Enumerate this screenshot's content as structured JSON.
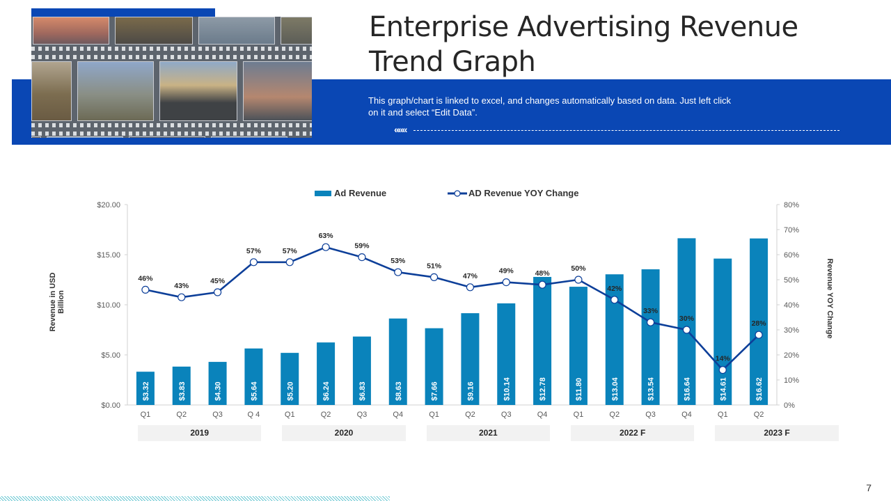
{
  "header": {
    "title_line1": "Enterprise Advertising Revenue",
    "title_line2": "Trend Graph",
    "subtitle_line1": "This graph/chart is linked to excel, and changes automatically based on data. Just left click",
    "subtitle_line2": "on it and select “Edit Data”.",
    "chevron_glyph": "«««",
    "brand_color": "#0a47b4"
  },
  "decor": {
    "photo_icon": "film-strip-photo-collage"
  },
  "page_number": "7",
  "chart_data": {
    "type": "bar+line",
    "title": "",
    "legend": [
      {
        "name": "Ad Revenue",
        "kind": "bar",
        "color": "#0a83bb"
      },
      {
        "name": "AD Revenue YOY Change",
        "kind": "line",
        "color": "#0d3f99"
      }
    ],
    "legend_placement": "top-center",
    "categories": [
      "Q1",
      "Q2",
      "Q3",
      "Q 4",
      "Q1",
      "Q2",
      "Q3",
      "Q4",
      "Q1",
      "Q2",
      "Q3",
      "Q4",
      "Q1",
      "Q2",
      "Q3",
      "Q4",
      "Q1",
      "Q2"
    ],
    "groups": [
      {
        "label": "2019",
        "span": 4
      },
      {
        "label": "2020",
        "span": 4
      },
      {
        "label": "2021",
        "span": 4
      },
      {
        "label": "2022 F",
        "span": 4
      },
      {
        "label": "2023 F",
        "span": 2
      }
    ],
    "series": [
      {
        "name": "Ad Revenue",
        "axis": "left",
        "values": [
          3.32,
          3.83,
          4.3,
          5.64,
          5.2,
          6.24,
          6.83,
          8.63,
          7.66,
          9.16,
          10.14,
          12.78,
          11.8,
          13.04,
          13.54,
          16.64,
          14.61,
          16.62
        ],
        "labels": [
          "$3.32",
          "$3.83",
          "$4.30",
          "$5.64",
          "$5.20",
          "$6.24",
          "$6.83",
          "$8.63",
          "$7.66",
          "$9.16",
          "$10.14",
          "$12.78",
          "$11.80",
          "$13.04",
          "$13.54",
          "$16.64",
          "$14.61",
          "$16.62"
        ]
      },
      {
        "name": "AD Revenue YOY Change",
        "axis": "right",
        "values": [
          46,
          43,
          45,
          57,
          57,
          63,
          59,
          53,
          51,
          47,
          49,
          48,
          50,
          42,
          33,
          30,
          14,
          28
        ],
        "labels": [
          "46%",
          "43%",
          "45%",
          "57%",
          "57%",
          "63%",
          "59%",
          "53%",
          "51%",
          "47%",
          "49%",
          "48%",
          "50%",
          "42%",
          "33%",
          "30%",
          "14%",
          "28%"
        ]
      }
    ],
    "ylabel": "Revenue in USD Billion",
    "y2label": "Revenue YOY Change",
    "ylim": [
      0,
      20
    ],
    "y2lim": [
      0,
      80
    ],
    "yticks": [
      "$0.00",
      "$5.00",
      "$10.00",
      "$15.00",
      "$20.00"
    ],
    "y2ticks": [
      "0%",
      "10%",
      "20%",
      "30%",
      "40%",
      "50%",
      "60%",
      "70%",
      "80%"
    ],
    "grid": false
  }
}
